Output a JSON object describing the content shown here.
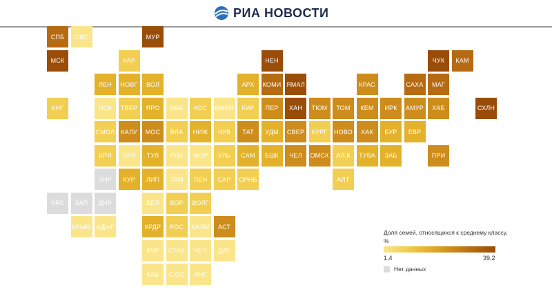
{
  "header": {
    "brand": "РИА НОВОСТИ",
    "logo_icon": "ria-globe-icon"
  },
  "legend": {
    "title": "Доля семей, относящихся к среднему классу, %",
    "min_label": "1,4",
    "max_label": "39,2",
    "nodata_label": "Нет данных",
    "nodata_color": "#dcdcdc",
    "scale_colors": [
      "#fbe58a",
      "#f2cf52",
      "#e3b12a",
      "#cd8c1b",
      "#b66a11",
      "#9a4d08"
    ]
  },
  "regions": [
    {
      "label": "СПБ",
      "col": 0,
      "row": 0,
      "level": 4
    },
    {
      "label": "СВС",
      "col": 1,
      "row": 0,
      "level": 0
    },
    {
      "label": "МУР",
      "col": 4,
      "row": 0,
      "level": 5
    },
    {
      "label": "МСК",
      "col": 0,
      "row": 1,
      "level": 5
    },
    {
      "label": "КАР",
      "col": 3,
      "row": 1,
      "level": 1
    },
    {
      "label": "НЕН",
      "col": 9,
      "row": 1,
      "level": 5
    },
    {
      "label": "ЧУК",
      "col": 16,
      "row": 1,
      "level": 5
    },
    {
      "label": "КАМ",
      "col": 17,
      "row": 1,
      "level": 4
    },
    {
      "label": "ЛЕН",
      "col": 2,
      "row": 2,
      "level": 2
    },
    {
      "label": "НОВГ",
      "col": 3,
      "row": 2,
      "level": 2
    },
    {
      "label": "ВОЛ",
      "col": 4,
      "row": 2,
      "level": 2
    },
    {
      "label": "АРХ",
      "col": 8,
      "row": 2,
      "level": 2
    },
    {
      "label": "КОМИ",
      "col": 9,
      "row": 2,
      "level": 4
    },
    {
      "label": "ЯМАЛ",
      "col": 10,
      "row": 2,
      "level": 5
    },
    {
      "label": "КРАС",
      "col": 13,
      "row": 2,
      "level": 3
    },
    {
      "label": "САХА",
      "col": 15,
      "row": 2,
      "level": 4
    },
    {
      "label": "МАГ",
      "col": 16,
      "row": 2,
      "level": 4
    },
    {
      "label": "КНГ",
      "col": 0,
      "row": 3,
      "level": 1
    },
    {
      "label": "ПСК",
      "col": 2,
      "row": 3,
      "level": 0
    },
    {
      "label": "ТВЕР",
      "col": 3,
      "row": 3,
      "level": 1
    },
    {
      "label": "ЯРО",
      "col": 4,
      "row": 3,
      "level": 2
    },
    {
      "label": "ИВА",
      "col": 5,
      "row": 3,
      "level": 0
    },
    {
      "label": "КОС",
      "col": 6,
      "row": 3,
      "level": 1
    },
    {
      "label": "МАРИ",
      "col": 7,
      "row": 3,
      "level": 0
    },
    {
      "label": "КИР",
      "col": 8,
      "row": 3,
      "level": 1
    },
    {
      "label": "ПЕР",
      "col": 9,
      "row": 3,
      "level": 3
    },
    {
      "label": "ХАН",
      "col": 10,
      "row": 3,
      "level": 5
    },
    {
      "label": "ТЮМ",
      "col": 11,
      "row": 3,
      "level": 3
    },
    {
      "label": "ТОМ",
      "col": 12,
      "row": 3,
      "level": 3
    },
    {
      "label": "КЕМ",
      "col": 13,
      "row": 3,
      "level": 3
    },
    {
      "label": "ИРК",
      "col": 14,
      "row": 3,
      "level": 3
    },
    {
      "label": "АМУР",
      "col": 15,
      "row": 3,
      "level": 3
    },
    {
      "label": "ХАБ",
      "col": 16,
      "row": 3,
      "level": 3
    },
    {
      "label": "СХЛН",
      "col": 18,
      "row": 3,
      "level": 5
    },
    {
      "label": "СМОЛ",
      "col": 2,
      "row": 4,
      "level": 1
    },
    {
      "label": "КАЛУ",
      "col": 3,
      "row": 4,
      "level": 3
    },
    {
      "label": "МОС",
      "col": 4,
      "row": 4,
      "level": 3
    },
    {
      "label": "ВЛА",
      "col": 5,
      "row": 4,
      "level": 1
    },
    {
      "label": "НИЖ",
      "col": 6,
      "row": 4,
      "level": 2
    },
    {
      "label": "ЧУВ",
      "col": 7,
      "row": 4,
      "level": 1
    },
    {
      "label": "ТАТ",
      "col": 8,
      "row": 4,
      "level": 3
    },
    {
      "label": "УДМ",
      "col": 9,
      "row": 4,
      "level": 2
    },
    {
      "label": "СВЕР",
      "col": 10,
      "row": 4,
      "level": 3
    },
    {
      "label": "КУРГ",
      "col": 11,
      "row": 4,
      "level": 1
    },
    {
      "label": "НОВО",
      "col": 12,
      "row": 4,
      "level": 3
    },
    {
      "label": "ХАК",
      "col": 13,
      "row": 4,
      "level": 3
    },
    {
      "label": "БУР",
      "col": 14,
      "row": 4,
      "level": 2
    },
    {
      "label": "ЕВР",
      "col": 15,
      "row": 4,
      "level": 2
    },
    {
      "label": "БРЯ",
      "col": 2,
      "row": 5,
      "level": 1
    },
    {
      "label": "ОРЛ",
      "col": 3,
      "row": 5,
      "level": 0
    },
    {
      "label": "ТУЛ",
      "col": 4,
      "row": 5,
      "level": 2
    },
    {
      "label": "РЯЗ",
      "col": 5,
      "row": 5,
      "level": 0
    },
    {
      "label": "МОР",
      "col": 6,
      "row": 5,
      "level": 0
    },
    {
      "label": "УЛЬ",
      "col": 7,
      "row": 5,
      "level": 1
    },
    {
      "label": "САМ",
      "col": 8,
      "row": 5,
      "level": 2
    },
    {
      "label": "БШК",
      "col": 9,
      "row": 5,
      "level": 2
    },
    {
      "label": "ЧЕЛ",
      "col": 10,
      "row": 5,
      "level": 3
    },
    {
      "label": "ОМСК",
      "col": 11,
      "row": 5,
      "level": 3
    },
    {
      "label": "АЛ.К",
      "col": 12,
      "row": 5,
      "level": 1
    },
    {
      "label": "ТУВА",
      "col": 13,
      "row": 5,
      "level": 2
    },
    {
      "label": "ЗАБ",
      "col": 14,
      "row": 5,
      "level": 2
    },
    {
      "label": "ПРИ",
      "col": 16,
      "row": 5,
      "level": 3
    },
    {
      "label": "ЛНР",
      "col": 2,
      "row": 6,
      "level": -1
    },
    {
      "label": "КУР",
      "col": 3,
      "row": 6,
      "level": 2
    },
    {
      "label": "ЛИП",
      "col": 4,
      "row": 6,
      "level": 2
    },
    {
      "label": "ТАМ",
      "col": 5,
      "row": 6,
      "level": 0
    },
    {
      "label": "ПЕН",
      "col": 6,
      "row": 6,
      "level": 1
    },
    {
      "label": "САР",
      "col": 7,
      "row": 6,
      "level": 1
    },
    {
      "label": "ОРНБ",
      "col": 8,
      "row": 6,
      "level": 1
    },
    {
      "label": "АЛТ",
      "col": 12,
      "row": 6,
      "level": 1
    },
    {
      "label": "ХРС",
      "col": 0,
      "row": 7,
      "level": -1
    },
    {
      "label": "ЗАП",
      "col": 1,
      "row": 7,
      "level": -1
    },
    {
      "label": "ДНР",
      "col": 2,
      "row": 7,
      "level": -1
    },
    {
      "label": "БЕЛ",
      "col": 4,
      "row": 7,
      "level": 0
    },
    {
      "label": "ВОР",
      "col": 5,
      "row": 7,
      "level": 1
    },
    {
      "label": "ВОЛГ",
      "col": 6,
      "row": 7,
      "level": 1
    },
    {
      "label": "КРЫМ",
      "col": 1,
      "row": 8,
      "level": 0
    },
    {
      "label": "АДЫГ",
      "col": 2,
      "row": 8,
      "level": 0
    },
    {
      "label": "КРДР",
      "col": 4,
      "row": 8,
      "level": 2
    },
    {
      "label": "РОС",
      "col": 5,
      "row": 8,
      "level": 1
    },
    {
      "label": "КАЛМ",
      "col": 6,
      "row": 8,
      "level": 0
    },
    {
      "label": "АСТ",
      "col": 7,
      "row": 8,
      "level": 3
    },
    {
      "label": "КЧР",
      "col": 4,
      "row": 9,
      "level": 0
    },
    {
      "label": "СТАВ",
      "col": 5,
      "row": 9,
      "level": 0
    },
    {
      "label": "ЧЕЧ",
      "col": 6,
      "row": 9,
      "level": 0
    },
    {
      "label": "ДАГ",
      "col": 7,
      "row": 9,
      "level": 0
    },
    {
      "label": "КАБ",
      "col": 4,
      "row": 10,
      "level": 0
    },
    {
      "label": "С.ОС",
      "col": 5,
      "row": 10,
      "level": 0
    },
    {
      "label": "ИНГ",
      "col": 6,
      "row": 10,
      "level": 0
    }
  ]
}
